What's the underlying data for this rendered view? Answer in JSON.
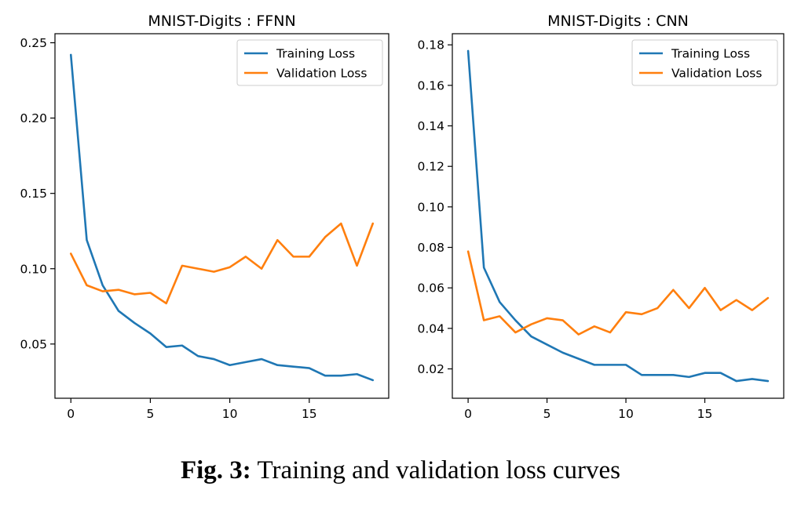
{
  "chart_data": [
    {
      "type": "line",
      "title": "MNIST-Digits : FFNN",
      "xlabel": "",
      "ylabel": "",
      "xlim": [
        -1,
        20
      ],
      "ylim": [
        0.014,
        0.256
      ],
      "x_ticks": [
        0,
        5,
        10,
        15
      ],
      "y_ticks": [
        0.05,
        0.1,
        0.15,
        0.2,
        0.25
      ],
      "y_tick_labels": [
        "0.05",
        "0.10",
        "0.15",
        "0.20",
        "0.25"
      ],
      "grid": false,
      "legend": "top-right",
      "x": [
        0,
        1,
        2,
        3,
        4,
        5,
        6,
        7,
        8,
        9,
        10,
        11,
        12,
        13,
        14,
        15,
        16,
        17,
        18,
        19
      ],
      "series": [
        {
          "name": "Training Loss",
          "color": "#1f77b4",
          "values": [
            0.242,
            0.119,
            0.089,
            0.072,
            0.064,
            0.057,
            0.048,
            0.049,
            0.042,
            0.04,
            0.036,
            0.038,
            0.04,
            0.036,
            0.035,
            0.034,
            0.029,
            0.029,
            0.03,
            0.026
          ]
        },
        {
          "name": "Validation Loss",
          "color": "#ff7f0e",
          "values": [
            0.11,
            0.089,
            0.085,
            0.086,
            0.083,
            0.084,
            0.077,
            0.102,
            0.1,
            0.098,
            0.101,
            0.108,
            0.1,
            0.119,
            0.108,
            0.108,
            0.121,
            0.13,
            0.102,
            0.13
          ]
        }
      ]
    },
    {
      "type": "line",
      "title": "MNIST-Digits : CNN",
      "xlabel": "",
      "ylabel": "",
      "xlim": [
        -1,
        20
      ],
      "ylim": [
        0.0055,
        0.1855
      ],
      "x_ticks": [
        0,
        5,
        10,
        15
      ],
      "y_ticks": [
        0.02,
        0.04,
        0.06,
        0.08,
        0.1,
        0.12,
        0.14,
        0.16,
        0.18
      ],
      "y_tick_labels": [
        "0.02",
        "0.04",
        "0.06",
        "0.08",
        "0.10",
        "0.12",
        "0.14",
        "0.16",
        "0.18"
      ],
      "grid": false,
      "legend": "top-right",
      "x": [
        0,
        1,
        2,
        3,
        4,
        5,
        6,
        7,
        8,
        9,
        10,
        11,
        12,
        13,
        14,
        15,
        16,
        17,
        18,
        19
      ],
      "series": [
        {
          "name": "Training Loss",
          "color": "#1f77b4",
          "values": [
            0.177,
            0.07,
            0.053,
            0.044,
            0.036,
            0.032,
            0.028,
            0.025,
            0.022,
            0.022,
            0.022,
            0.017,
            0.017,
            0.017,
            0.016,
            0.018,
            0.018,
            0.014,
            0.015,
            0.014
          ]
        },
        {
          "name": "Validation Loss",
          "color": "#ff7f0e",
          "values": [
            0.078,
            0.044,
            0.046,
            0.038,
            0.042,
            0.045,
            0.044,
            0.037,
            0.041,
            0.038,
            0.048,
            0.047,
            0.05,
            0.059,
            0.05,
            0.06,
            0.049,
            0.054,
            0.049,
            0.055
          ]
        }
      ]
    }
  ],
  "caption": {
    "label": "Fig. 3:",
    "text": "Training and validation loss curves"
  }
}
